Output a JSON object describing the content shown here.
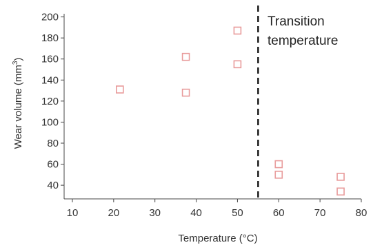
{
  "chart_data": {
    "type": "scatter",
    "title": "",
    "xlabel": "Temperature (°C)",
    "ylabel": "Wear volume (mm",
    "ylabel_superscript": "3",
    "ylabel_close": ")",
    "xlim": [
      8,
      80
    ],
    "ylim": [
      27,
      203
    ],
    "x_ticks": [
      10,
      20,
      30,
      40,
      50,
      60,
      70,
      80
    ],
    "x_tick_labels": [
      "10",
      "20",
      "30",
      "40",
      "50",
      "60",
      "70",
      "80"
    ],
    "y_ticks": [
      40,
      60,
      80,
      100,
      120,
      140,
      160,
      180,
      200
    ],
    "y_tick_labels": [
      "40",
      "60",
      "80",
      "100",
      "120",
      "140",
      "160",
      "180",
      "200"
    ],
    "grid": false,
    "legend": "none",
    "marker": "hollow-square",
    "marker_color": "#e89a9a",
    "points": [
      {
        "x": 21.5,
        "y": 131
      },
      {
        "x": 37.5,
        "y": 162
      },
      {
        "x": 37.5,
        "y": 128
      },
      {
        "x": 50,
        "y": 187
      },
      {
        "x": 50,
        "y": 155
      },
      {
        "x": 60,
        "y": 60
      },
      {
        "x": 60,
        "y": 50
      },
      {
        "x": 75,
        "y": 48
      },
      {
        "x": 75,
        "y": 34
      }
    ],
    "reference_line": {
      "x": 55,
      "style": "dashed",
      "color": "#111111",
      "label_line1": "Transition",
      "label_line2": "temperature"
    }
  }
}
